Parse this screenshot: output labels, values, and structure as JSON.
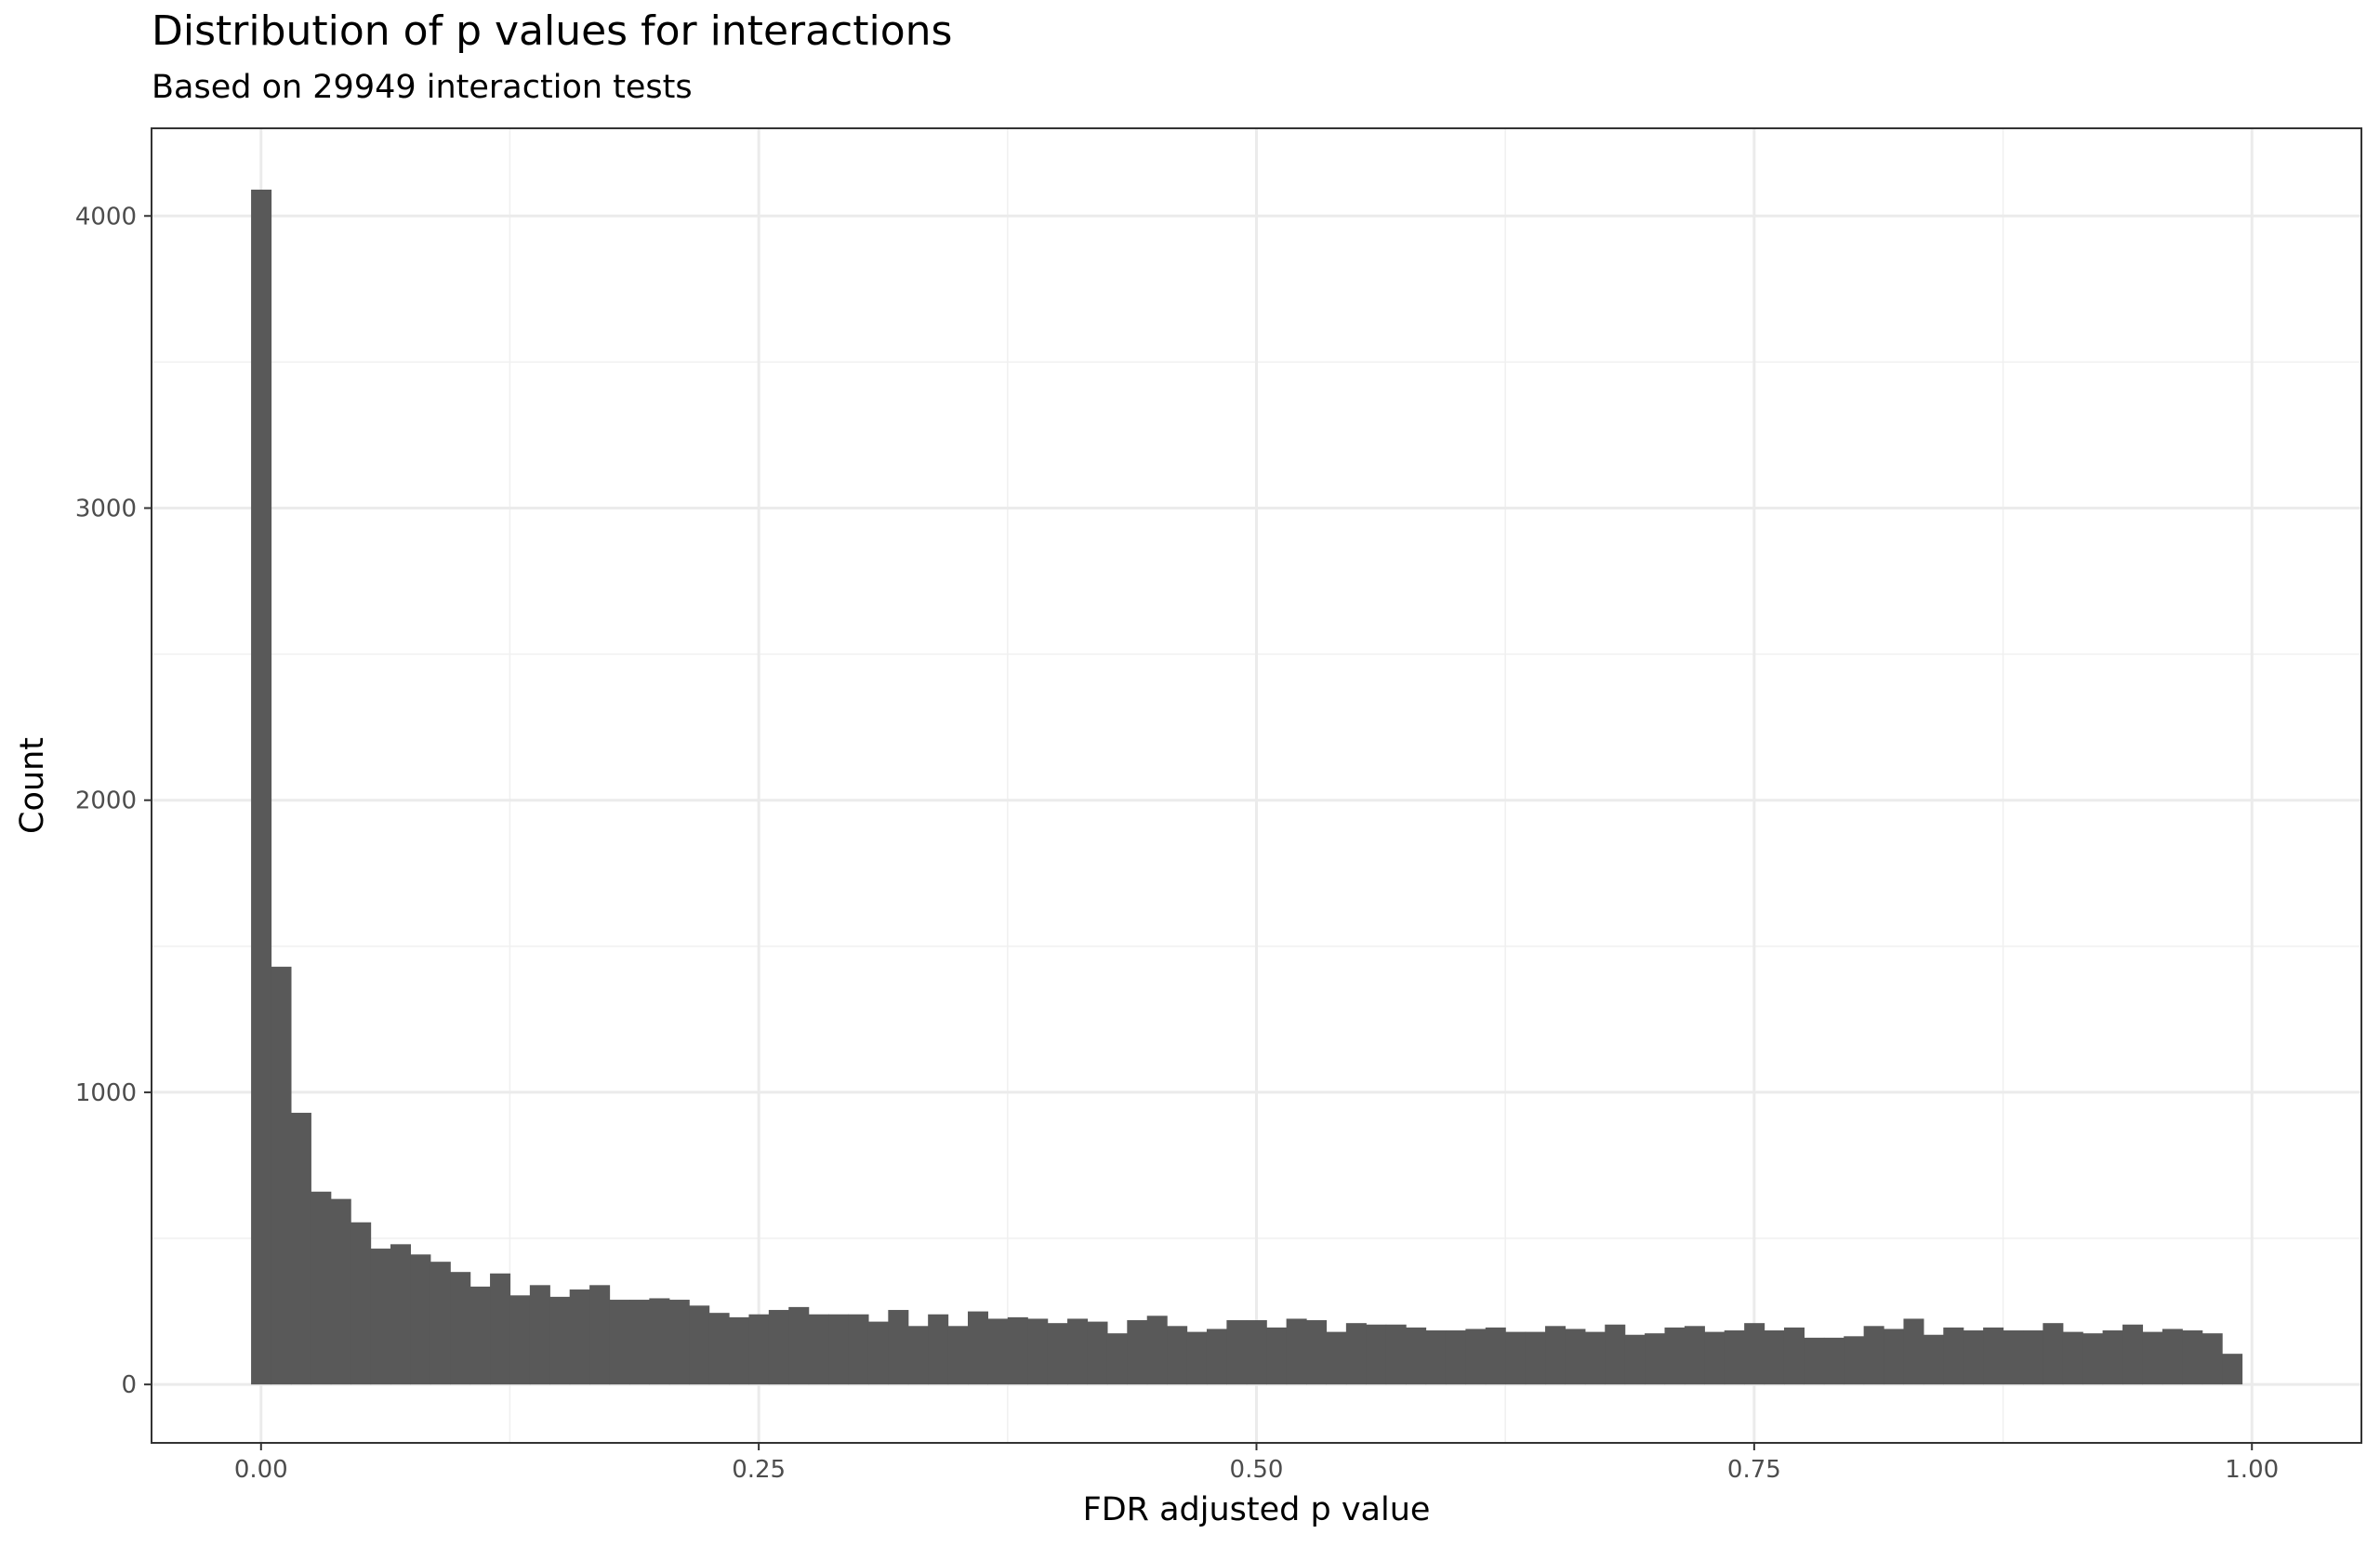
{
  "chart_data": {
    "type": "bar",
    "title": "Distribution of p values for interactions",
    "subtitle": "Based on 29949 interaction tests",
    "xlabel": "FDR adjusted p value",
    "ylabel": "Count",
    "x_ticks": [
      "0.00",
      "0.25",
      "0.50",
      "0.75",
      "1.00"
    ],
    "y_ticks": [
      "0",
      "1000",
      "2000",
      "3000",
      "4000"
    ],
    "xlim": [
      -0.055,
      1.055
    ],
    "ylim": [
      -200,
      4300
    ],
    "bin_width": 0.01,
    "bin_start": -0.005,
    "values": [
      4090,
      1430,
      930,
      660,
      635,
      555,
      465,
      480,
      445,
      420,
      385,
      335,
      380,
      305,
      340,
      300,
      325,
      340,
      290,
      290,
      295,
      290,
      270,
      245,
      230,
      240,
      255,
      265,
      240,
      240,
      240,
      215,
      255,
      200,
      240,
      200,
      250,
      225,
      230,
      225,
      210,
      225,
      215,
      175,
      220,
      235,
      200,
      180,
      190,
      220,
      220,
      195,
      225,
      220,
      180,
      210,
      205,
      205,
      195,
      185,
      185,
      190,
      195,
      180,
      180,
      200,
      190,
      180,
      205,
      170,
      175,
      195,
      200,
      180,
      185,
      210,
      185,
      195,
      160,
      160,
      165,
      200,
      190,
      225,
      170,
      195,
      185,
      195,
      185,
      185,
      210,
      180,
      175,
      185,
      205,
      180,
      190,
      185,
      175,
      105
    ],
    "fill_color": "#595959",
    "grid": true,
    "theme": "black-and-white"
  }
}
